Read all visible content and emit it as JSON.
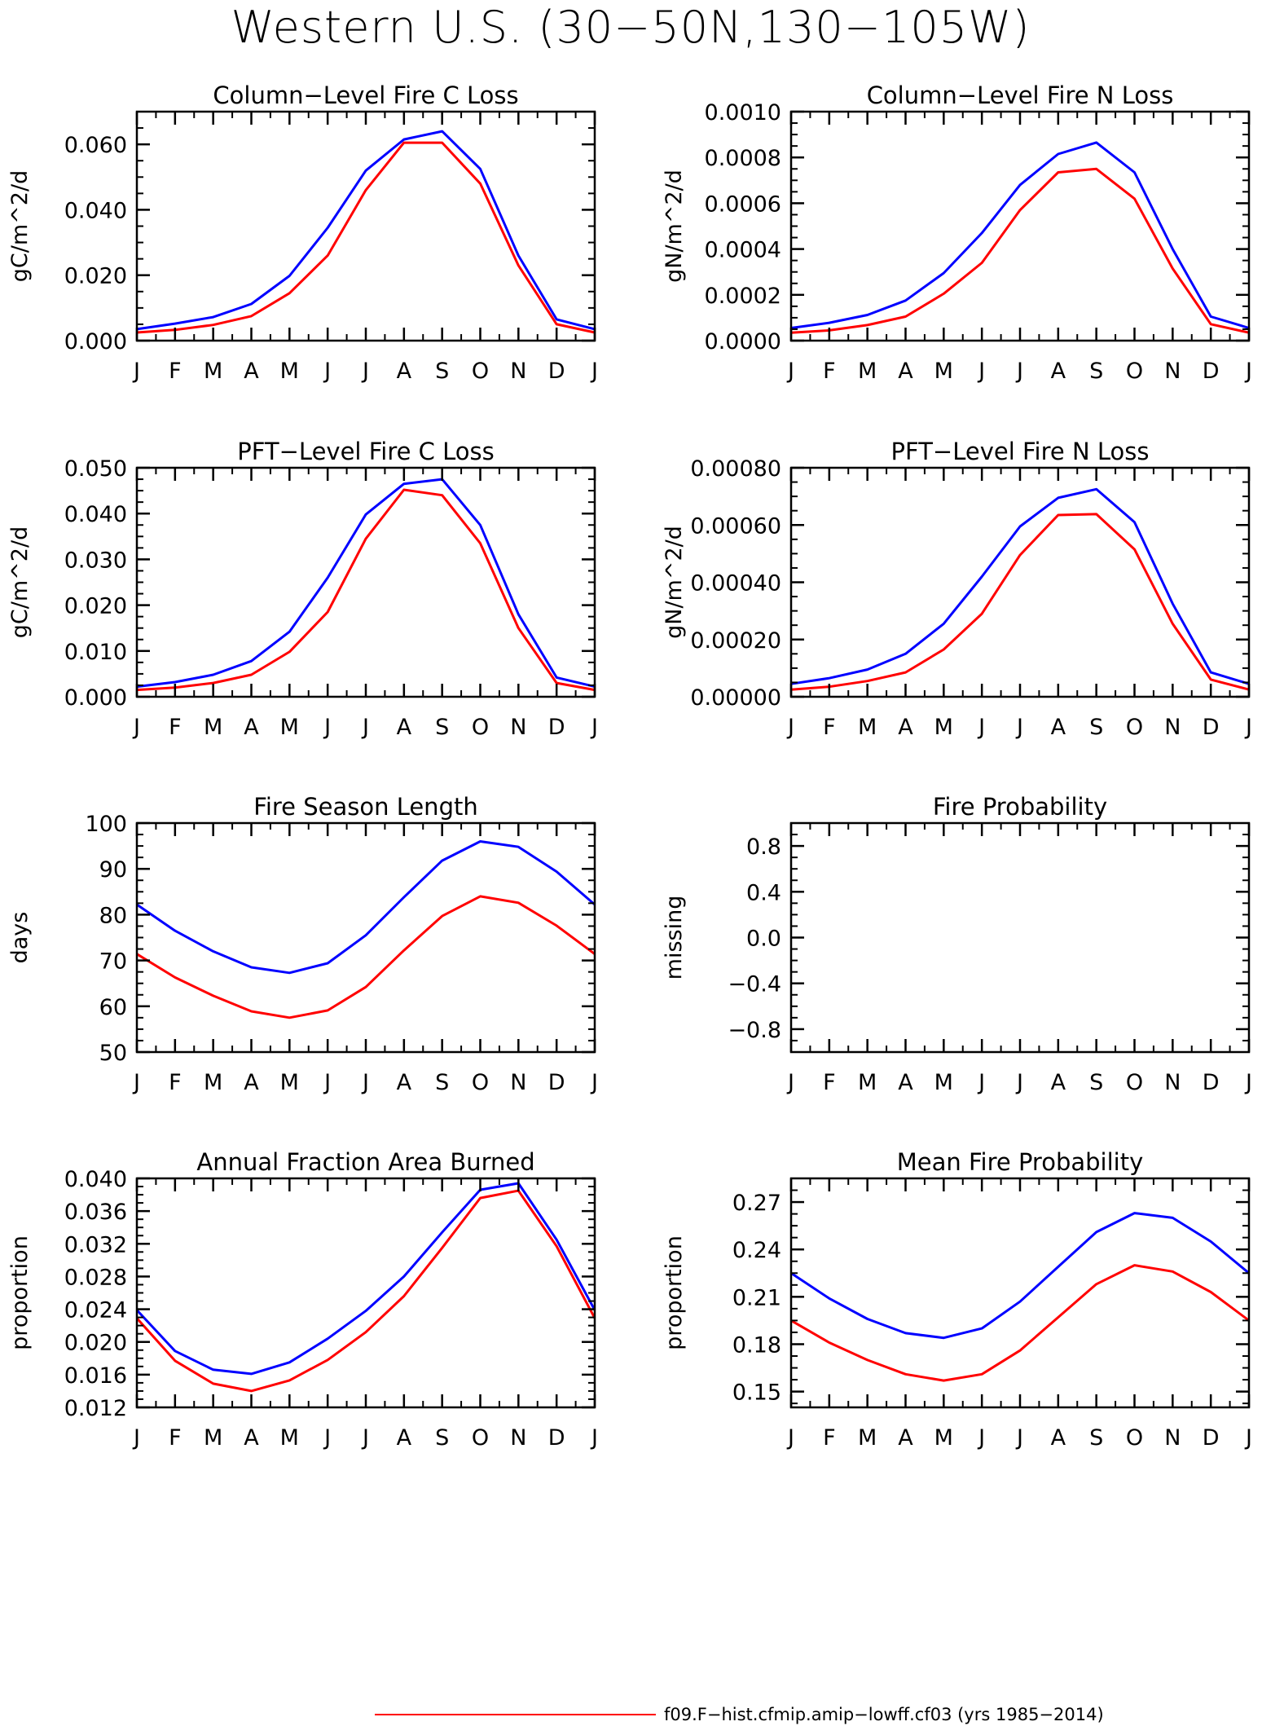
{
  "figure": {
    "title": "Western U.S. (30−50N,130−105W)",
    "legend": [
      {
        "label": "f09.F−hist.cfmip.amip−lowff.cf03 (yrs 1985−2014)",
        "color": "#ff0000"
      }
    ]
  },
  "colors": {
    "series_1": "#0000ff",
    "series_2": "#ff0000"
  },
  "chart_data": [
    {
      "id": "col-c",
      "type": "line",
      "title": "Column−Level Fire C Loss",
      "ylabel": "gC/m^2/d",
      "categories": [
        "J",
        "F",
        "M",
        "A",
        "M",
        "J",
        "J",
        "A",
        "S",
        "O",
        "N",
        "D",
        "J"
      ],
      "ylim": [
        0,
        0.07
      ],
      "yticks": [
        0,
        0.02,
        0.04,
        0.06
      ],
      "yticklabels": [
        "0.000",
        "0.020",
        "0.040",
        "0.060"
      ],
      "series": [
        {
          "values": [
            0.0035,
            0.0052,
            0.0072,
            0.0112,
            0.0198,
            0.0345,
            0.052,
            0.0615,
            0.064,
            0.0525,
            0.026,
            0.0065,
            0.0035
          ],
          "color": "#0000ff"
        },
        {
          "values": [
            0.0025,
            0.0033,
            0.0048,
            0.0075,
            0.0145,
            0.026,
            0.046,
            0.0605,
            0.0605,
            0.048,
            0.023,
            0.005,
            0.0025
          ],
          "color": "#ff0000"
        }
      ]
    },
    {
      "id": "col-n",
      "type": "line",
      "title": "Column−Level Fire N Loss",
      "ylabel": "gN/m^2/d",
      "categories": [
        "J",
        "F",
        "M",
        "A",
        "M",
        "J",
        "J",
        "A",
        "S",
        "O",
        "N",
        "D",
        "J"
      ],
      "ylim": [
        0,
        0.001
      ],
      "yticks": [
        0,
        0.0002,
        0.0004,
        0.0006,
        0.0008,
        0.001
      ],
      "yticklabels": [
        "0.0000",
        "0.0002",
        "0.0004",
        "0.0006",
        "0.0008",
        "0.0010"
      ],
      "series": [
        {
          "values": [
            5.5e-05,
            7.8e-05,
            0.000112,
            0.000175,
            0.000295,
            0.00047,
            0.00068,
            0.000815,
            0.000865,
            0.000735,
            0.0004,
            0.000105,
            5.5e-05
          ],
          "color": "#0000ff"
        },
        {
          "values": [
            3.5e-05,
            4.5e-05,
            6.8e-05,
            0.000105,
            0.000205,
            0.00034,
            0.00057,
            0.000735,
            0.00075,
            0.00062,
            0.000315,
            7.2e-05,
            3.5e-05
          ],
          "color": "#ff0000"
        }
      ]
    },
    {
      "id": "pft-c",
      "type": "line",
      "title": "PFT−Level Fire C Loss",
      "ylabel": "gC/m^2/d",
      "categories": [
        "J",
        "F",
        "M",
        "A",
        "M",
        "J",
        "J",
        "A",
        "S",
        "O",
        "N",
        "D",
        "J"
      ],
      "ylim": [
        0,
        0.05
      ],
      "yticks": [
        0,
        0.01,
        0.02,
        0.03,
        0.04,
        0.05
      ],
      "yticklabels": [
        "0.000",
        "0.010",
        "0.020",
        "0.030",
        "0.040",
        "0.050"
      ],
      "series": [
        {
          "values": [
            0.0022,
            0.0032,
            0.0048,
            0.0078,
            0.0142,
            0.026,
            0.0398,
            0.0465,
            0.0475,
            0.0375,
            0.018,
            0.0042,
            0.0022
          ],
          "color": "#0000ff"
        },
        {
          "values": [
            0.0015,
            0.002,
            0.003,
            0.0048,
            0.0098,
            0.0185,
            0.0345,
            0.0452,
            0.044,
            0.0335,
            0.015,
            0.003,
            0.0015
          ],
          "color": "#ff0000"
        }
      ]
    },
    {
      "id": "pft-n",
      "type": "line",
      "title": "PFT−Level Fire N Loss",
      "ylabel": "gN/m^2/d",
      "categories": [
        "J",
        "F",
        "M",
        "A",
        "M",
        "J",
        "J",
        "A",
        "S",
        "O",
        "N",
        "D",
        "J"
      ],
      "ylim": [
        0,
        0.0008
      ],
      "yticks": [
        0,
        0.0002,
        0.0004,
        0.0006,
        0.0008
      ],
      "yticklabels": [
        "0.00000",
        "0.00020",
        "0.00040",
        "0.00060",
        "0.00080"
      ],
      "series": [
        {
          "values": [
            4.5e-05,
            6.5e-05,
            9.5e-05,
            0.00015,
            0.000255,
            0.00042,
            0.000595,
            0.000695,
            0.000725,
            0.00061,
            0.000325,
            8.5e-05,
            4.5e-05
          ],
          "color": "#0000ff"
        },
        {
          "values": [
            2.5e-05,
            3.5e-05,
            5.5e-05,
            8.5e-05,
            0.000165,
            0.00029,
            0.000495,
            0.000635,
            0.000638,
            0.000515,
            0.000255,
            6e-05,
            2.5e-05
          ],
          "color": "#ff0000"
        }
      ]
    },
    {
      "id": "season",
      "type": "line",
      "title": "Fire Season Length",
      "ylabel": "days",
      "categories": [
        "J",
        "F",
        "M",
        "A",
        "M",
        "J",
        "J",
        "A",
        "S",
        "O",
        "N",
        "D",
        "J"
      ],
      "ylim": [
        50,
        100
      ],
      "yticks": [
        50,
        60,
        70,
        80,
        90,
        100
      ],
      "yticklabels": [
        "50",
        "60",
        "70",
        "80",
        "90",
        "100"
      ],
      "series": [
        {
          "values": [
            82.2,
            76.5,
            72,
            68.5,
            67.3,
            69.4,
            75.5,
            83.8,
            91.8,
            96,
            94.8,
            89.4,
            82.2
          ],
          "color": "#0000ff"
        },
        {
          "values": [
            71.4,
            66.3,
            62.3,
            58.9,
            57.5,
            59.1,
            64.2,
            72.2,
            79.7,
            84,
            82.6,
            77.6,
            71.4
          ],
          "color": "#ff0000"
        }
      ]
    },
    {
      "id": "prob",
      "type": "line",
      "title": "Fire Probability",
      "ylabel": "missing",
      "categories": [
        "J",
        "F",
        "M",
        "A",
        "M",
        "J",
        "J",
        "A",
        "S",
        "O",
        "N",
        "D",
        "J"
      ],
      "ylim": [
        -1,
        1
      ],
      "yticks": [
        -0.8,
        -0.4,
        0,
        0.4,
        0.8
      ],
      "yticklabels": [
        "−0.8",
        "−0.4",
        "0.0",
        "0.4",
        "0.8"
      ],
      "series": []
    },
    {
      "id": "afab",
      "type": "line",
      "title": "Annual Fraction Area Burned",
      "ylabel": "proportion",
      "categories": [
        "J",
        "F",
        "M",
        "A",
        "M",
        "J",
        "J",
        "A",
        "S",
        "O",
        "N",
        "D",
        "J"
      ],
      "ylim": [
        0.012,
        0.04
      ],
      "yticks": [
        0.012,
        0.016,
        0.02,
        0.024,
        0.028,
        0.032,
        0.036,
        0.04
      ],
      "yticklabels": [
        "0.012",
        "0.016",
        "0.020",
        "0.024",
        "0.028",
        "0.032",
        "0.036",
        "0.040"
      ],
      "series": [
        {
          "values": [
            0.0239,
            0.0189,
            0.0166,
            0.0161,
            0.0175,
            0.0204,
            0.0238,
            0.028,
            0.0334,
            0.0386,
            0.0394,
            0.0325,
            0.0239
          ],
          "color": "#0000ff"
        },
        {
          "values": [
            0.0229,
            0.0177,
            0.0149,
            0.014,
            0.0153,
            0.0178,
            0.0212,
            0.0256,
            0.0315,
            0.0376,
            0.0385,
            0.0317,
            0.0229
          ],
          "color": "#ff0000"
        }
      ]
    },
    {
      "id": "meanprob",
      "type": "line",
      "title": "Mean Fire Probability",
      "ylabel": "proportion",
      "categories": [
        "J",
        "F",
        "M",
        "A",
        "M",
        "J",
        "J",
        "A",
        "S",
        "O",
        "N",
        "D",
        "J"
      ],
      "ylim": [
        0.14,
        0.285
      ],
      "yticks": [
        0.15,
        0.18,
        0.21,
        0.24,
        0.27
      ],
      "yticklabels": [
        "0.15",
        "0.18",
        "0.21",
        "0.24",
        "0.27"
      ],
      "series": [
        {
          "values": [
            0.225,
            0.209,
            0.196,
            0.187,
            0.184,
            0.19,
            0.207,
            0.229,
            0.251,
            0.263,
            0.26,
            0.245,
            0.225
          ],
          "color": "#0000ff"
        },
        {
          "values": [
            0.195,
            0.181,
            0.17,
            0.161,
            0.157,
            0.161,
            0.176,
            0.197,
            0.218,
            0.23,
            0.226,
            0.213,
            0.195
          ],
          "color": "#ff0000"
        }
      ]
    }
  ]
}
